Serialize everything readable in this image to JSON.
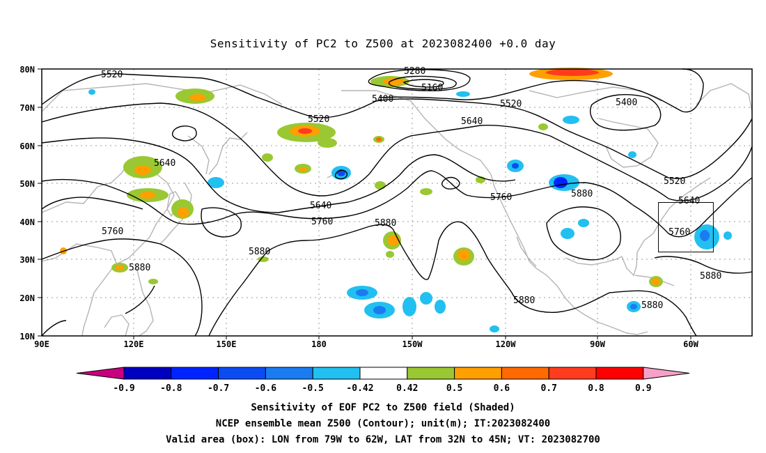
{
  "title": "Sensitivity of PC2 to Z500 at 2023082400 +0.0 day",
  "map": {
    "lat_labels": [
      "80N",
      "70N",
      "60N",
      "50N",
      "40N",
      "30N",
      "20N",
      "10N"
    ],
    "lon_labels": [
      "90E",
      "120E",
      "150E",
      "180",
      "150W",
      "120W",
      "90W",
      "60W"
    ],
    "lon_range": [
      90,
      310
    ],
    "lat_range": [
      10,
      80
    ]
  },
  "contour_labels": [
    "5520",
    "5280",
    "5160",
    "5400",
    "5400",
    "5520",
    "5520",
    "5640",
    "5640",
    "5640",
    "5640",
    "5760",
    "5760",
    "5760",
    "5760",
    "5880",
    "5880",
    "5880",
    "5880",
    "5880",
    "5880",
    "5880",
    "5520",
    "5640",
    "5760"
  ],
  "valid_box": {
    "lon": [
      -79,
      -62
    ],
    "lat": [
      32,
      45
    ]
  },
  "colorbar": {
    "levels": [
      "-0.9",
      "-0.8",
      "-0.7",
      "-0.6",
      "-0.5",
      "-0.42",
      "0.42",
      "0.5",
      "0.6",
      "0.7",
      "0.8",
      "0.9"
    ],
    "colors": [
      "#c8007f",
      "#0000c0",
      "#0024ff",
      "#0a4cf2",
      "#1a7cf0",
      "#21c0f0",
      "#ffffff",
      "#99c832",
      "#ff9f00",
      "#ff6a00",
      "#ff3c1e",
      "#ff0000",
      "#f5a0c8"
    ]
  },
  "footer": {
    "line1": "Sensitivity of EOF PC2 to Z500 field (Shaded)",
    "line2": "NCEP ensemble mean Z500 (Contour); unit(m); IT:2023082400",
    "line3": "Valid area (box): LON from 79W to 62W, LAT from 32N to 45N; VT: 2023082700"
  }
}
